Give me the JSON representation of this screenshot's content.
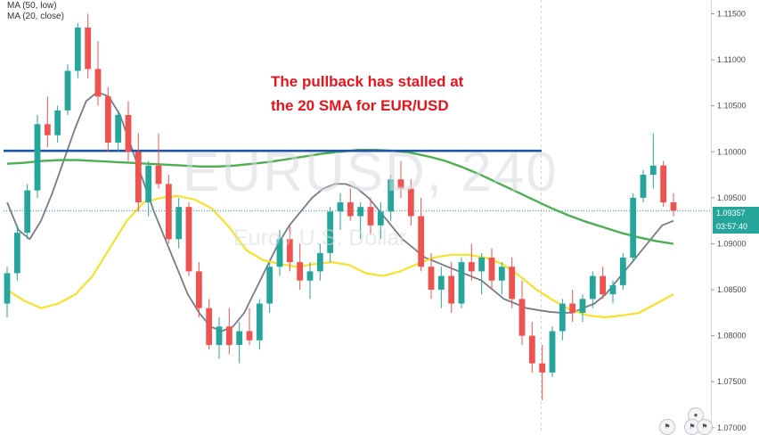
{
  "legend": [
    "MA (50, low)",
    "MA (20, close)"
  ],
  "headline": [
    "The pullback has stalled at",
    "the 20 SMA for EUR/USD"
  ],
  "watermark": {
    "symbol": "EURUSD, 240",
    "description": "Euro / U.S. Dollar"
  },
  "colors": {
    "up": "#26a69a",
    "down": "#ef5350",
    "ma50": "#4caf50",
    "ma20": "#787b86",
    "yellow_ma": "#f5e22c",
    "resistance": "#1f54a6",
    "price_tag": "#26a69a",
    "headline": "#e8141c"
  },
  "chart_data": {
    "type": "candlestick",
    "title": "",
    "y_ticks": [
      "1.11500",
      "1.11000",
      "1.10500",
      "1.10000",
      "1.09500",
      "1.09000",
      "1.08500",
      "1.08000",
      "1.07500",
      "1.07000"
    ],
    "ylim": [
      1.0695,
      1.1165
    ],
    "last_price": "1.09357",
    "countdown": "03:57:40",
    "resistance_level": 1.1001,
    "candles": [
      [
        1.0835,
        1.0875,
        1.082,
        1.0868
      ],
      [
        1.0868,
        1.092,
        1.086,
        1.0912
      ],
      [
        1.0912,
        1.0965,
        1.0905,
        1.0958
      ],
      [
        1.0958,
        1.104,
        1.095,
        1.103
      ],
      [
        1.103,
        1.106,
        1.1005,
        1.1018
      ],
      [
        1.1018,
        1.105,
        1.101,
        1.1045
      ],
      [
        1.1045,
        1.1095,
        1.104,
        1.1088
      ],
      [
        1.1088,
        1.114,
        1.108,
        1.1135
      ],
      [
        1.1135,
        1.115,
        1.108,
        1.109
      ],
      [
        1.109,
        1.112,
        1.105,
        1.106
      ],
      [
        1.106,
        1.107,
        1.1,
        1.101
      ],
      [
        1.101,
        1.1045,
        1.1,
        1.104
      ],
      [
        1.104,
        1.1055,
        1.099,
        1.1
      ],
      [
        1.1,
        1.102,
        1.0935,
        1.0945
      ],
      [
        1.0945,
        1.099,
        1.093,
        1.0985
      ],
      [
        1.0985,
        1.102,
        1.096,
        1.0965
      ],
      [
        1.0965,
        1.0975,
        1.09,
        1.0905
      ],
      [
        1.0905,
        1.095,
        1.0895,
        1.094
      ],
      [
        1.094,
        1.0945,
        1.0865,
        1.087
      ],
      [
        1.087,
        1.088,
        1.082,
        1.083
      ],
      [
        1.083,
        1.084,
        1.0785,
        1.079
      ],
      [
        1.079,
        1.082,
        1.0775,
        1.081
      ],
      [
        1.081,
        1.083,
        1.078,
        1.079
      ],
      [
        1.079,
        1.0815,
        1.077,
        1.0805
      ],
      [
        1.0805,
        1.083,
        1.079,
        1.0795
      ],
      [
        1.0795,
        1.084,
        1.0785,
        1.0835
      ],
      [
        1.0835,
        1.088,
        1.0825,
        1.0875
      ],
      [
        1.0875,
        1.0915,
        1.0865,
        1.0905
      ],
      [
        1.0905,
        1.092,
        1.087,
        1.088
      ],
      [
        1.088,
        1.09,
        1.085,
        1.086
      ],
      [
        1.086,
        1.088,
        1.084,
        1.087
      ],
      [
        1.087,
        1.09,
        1.086,
        1.089
      ],
      [
        1.089,
        1.094,
        1.088,
        1.0935
      ],
      [
        1.0935,
        1.0955,
        1.0915,
        1.0945
      ],
      [
        1.0945,
        1.096,
        1.0925,
        1.093
      ],
      [
        1.093,
        1.0945,
        1.0905,
        1.094
      ],
      [
        1.094,
        1.095,
        1.091,
        1.092
      ],
      [
        1.092,
        1.0945,
        1.0905,
        1.0935
      ],
      [
        1.0935,
        1.0975,
        1.0925,
        1.097
      ],
      [
        1.097,
        1.099,
        1.095,
        1.096
      ],
      [
        1.096,
        1.097,
        1.092,
        1.093
      ],
      [
        1.093,
        1.095,
        1.087,
        1.0875
      ],
      [
        1.0875,
        1.089,
        1.084,
        1.085
      ],
      [
        1.085,
        1.0875,
        1.083,
        1.0865
      ],
      [
        1.0865,
        1.088,
        1.0825,
        1.0835
      ],
      [
        1.0835,
        1.0885,
        1.083,
        1.088
      ],
      [
        1.088,
        1.09,
        1.086,
        1.087
      ],
      [
        1.087,
        1.089,
        1.0845,
        1.0885
      ],
      [
        1.0885,
        1.0895,
        1.085,
        1.086
      ],
      [
        1.086,
        1.088,
        1.0845,
        1.0875
      ],
      [
        1.0875,
        1.0885,
        1.083,
        1.084
      ],
      [
        1.084,
        1.086,
        1.079,
        1.08
      ],
      [
        1.08,
        1.0815,
        1.076,
        1.077
      ],
      [
        1.077,
        1.079,
        1.073,
        1.076
      ],
      [
        1.076,
        1.081,
        1.0755,
        1.0805
      ],
      [
        1.0805,
        1.084,
        1.0795,
        1.0835
      ],
      [
        1.0835,
        1.085,
        1.0815,
        1.0825
      ],
      [
        1.0825,
        1.0845,
        1.0815,
        1.084
      ],
      [
        1.084,
        1.087,
        1.083,
        1.0865
      ],
      [
        1.0865,
        1.0875,
        1.084,
        1.0845
      ],
      [
        1.0845,
        1.086,
        1.0835,
        1.0855
      ],
      [
        1.0855,
        1.089,
        1.085,
        1.0885
      ],
      [
        1.0885,
        1.0955,
        1.088,
        1.095
      ],
      [
        1.095,
        1.098,
        1.0945,
        1.0975
      ],
      [
        1.0975,
        1.102,
        1.096,
        1.0985
      ],
      [
        1.0985,
        1.099,
        1.094,
        1.0945
      ],
      [
        1.0945,
        1.0955,
        1.093,
        1.0936
      ]
    ],
    "series": [
      {
        "values": [
          1.0945,
          1.0915,
          1.0905,
          1.0925,
          1.0955,
          1.099,
          1.1025,
          1.1055,
          1.1065,
          1.106,
          1.104,
          1.1005,
          1.097,
          1.0935,
          1.0905,
          1.0875,
          1.0845,
          1.0825,
          1.081,
          1.0805,
          1.081,
          1.0825,
          1.085,
          1.0875,
          1.09,
          1.092,
          1.0935,
          1.095,
          1.096,
          1.0965,
          1.0965,
          1.096,
          1.095,
          1.0935,
          1.092,
          1.0905,
          1.0895,
          1.0885,
          1.088,
          1.0875,
          1.087,
          1.0865,
          1.086,
          1.085,
          1.084,
          1.0835,
          1.083,
          1.0828,
          1.0826,
          1.0825,
          1.0825,
          1.083,
          1.0835,
          1.0845,
          1.086,
          1.0875,
          1.089,
          1.0905,
          1.092,
          1.0925
        ]
      },
      {
        "values": [
          1.0987,
          1.0988,
          1.099,
          1.0991,
          1.0991,
          1.099,
          1.0989,
          1.0988,
          1.0987,
          1.0986,
          1.0985,
          1.0984,
          1.0984,
          1.0985,
          1.0987,
          1.0989,
          1.0992,
          1.0995,
          1.0998,
          1.1,
          1.1002,
          1.1002,
          1.1001,
          1.0999,
          1.0995,
          1.099,
          1.0983,
          1.0975,
          1.0966,
          1.0957,
          1.0948,
          1.0939,
          1.0931,
          1.0924,
          1.0918,
          1.0912,
          1.0907,
          1.0903,
          1.09
        ]
      },
      {
        "values": [
          1.085,
          1.0838,
          1.083,
          1.0835,
          1.0845,
          1.0865,
          1.0895,
          1.0925,
          1.0945,
          1.095,
          1.0952,
          1.0948,
          1.0938,
          1.0918,
          1.0893,
          1.0882,
          1.0878,
          1.0875,
          1.0878,
          1.088,
          1.0877,
          1.0868,
          1.0865,
          1.087,
          1.0878,
          1.0885,
          1.0888,
          1.0888,
          1.0885,
          1.0878,
          1.0865,
          1.085,
          1.0838,
          1.0828,
          1.0822,
          1.082,
          1.0822,
          1.0825,
          1.0835,
          1.0845
        ]
      }
    ]
  }
}
